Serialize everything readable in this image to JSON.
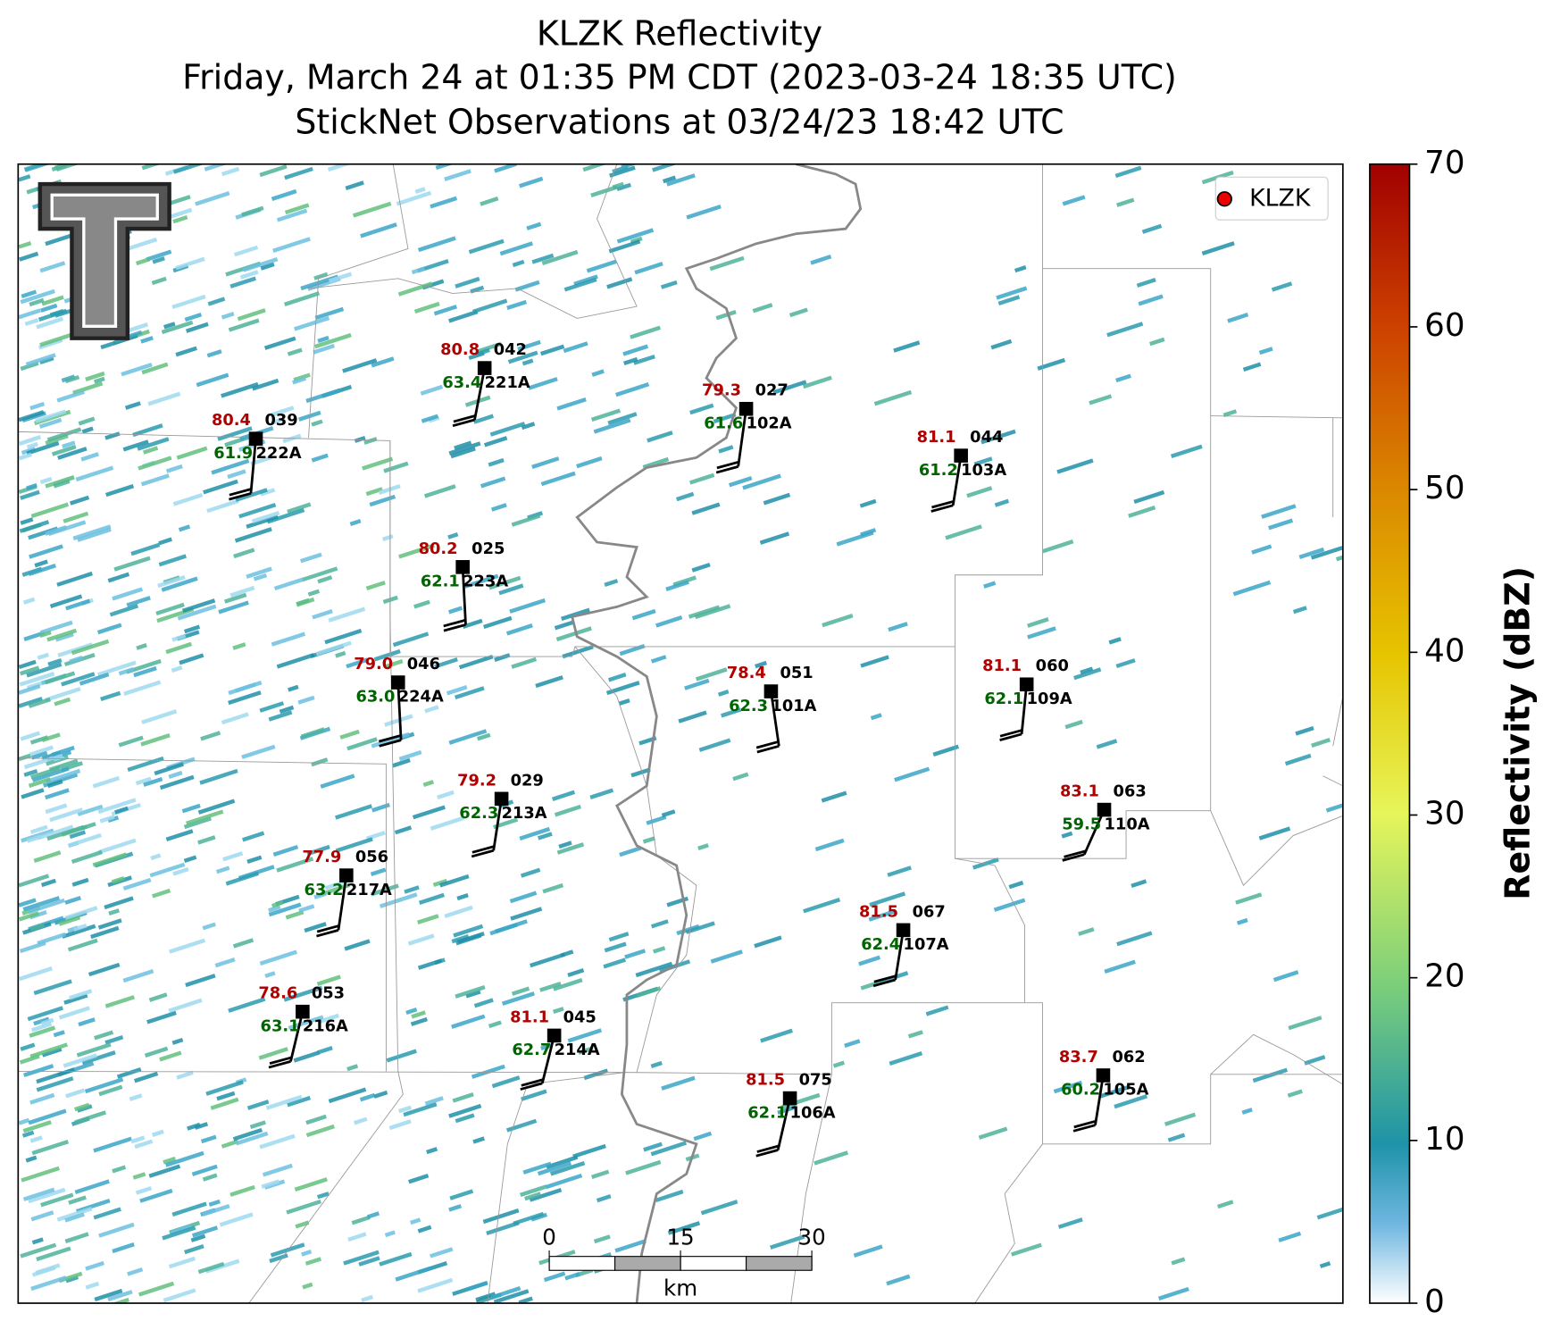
{
  "title": [
    "KLZK Reflectivity",
    "Friday, March 24 at 01:35 PM CDT (2023-03-24 18:35 UTC)",
    "StickNet Observations at 03/24/23 18:42 UTC"
  ],
  "legend": "KLZK",
  "colorbar": {
    "label": "Reflectivity (dBZ)",
    "range": [
      0,
      70
    ],
    "ticks": [
      0,
      10,
      20,
      30,
      40,
      50,
      60,
      70
    ]
  },
  "scale_bar": {
    "ticks": [
      0,
      15,
      30
    ],
    "unit": "km"
  },
  "stations": [
    {
      "id": "042",
      "probe": "221A",
      "temperature": "80.8",
      "dewpoint": "63.4"
    },
    {
      "id": "039",
      "probe": "222A",
      "temperature": "80.4",
      "dewpoint": "61.9"
    },
    {
      "id": "027",
      "probe": "102A",
      "temperature": "79.3",
      "dewpoint": "61.6"
    },
    {
      "id": "044",
      "probe": "103A",
      "temperature": "81.1",
      "dewpoint": "61.2"
    },
    {
      "id": "025",
      "probe": "223A",
      "temperature": "80.2",
      "dewpoint": "62.1"
    },
    {
      "id": "046",
      "probe": "224A",
      "temperature": "79.0",
      "dewpoint": "63.0"
    },
    {
      "id": "051",
      "probe": "101A",
      "temperature": "78.4",
      "dewpoint": "62.3"
    },
    {
      "id": "060",
      "probe": "109A",
      "temperature": "81.1",
      "dewpoint": "62.1"
    },
    {
      "id": "029",
      "probe": "213A",
      "temperature": "79.2",
      "dewpoint": "62.3"
    },
    {
      "id": "063",
      "probe": "110A",
      "temperature": "83.1",
      "dewpoint": "59.5"
    },
    {
      "id": "056",
      "probe": "217A",
      "temperature": "77.9",
      "dewpoint": "63.2"
    },
    {
      "id": "067",
      "probe": "107A",
      "temperature": "81.5",
      "dewpoint": "62.4"
    },
    {
      "id": "053",
      "probe": "216A",
      "temperature": "78.6",
      "dewpoint": "63.1"
    },
    {
      "id": "045",
      "probe": "214A",
      "temperature": "81.1",
      "dewpoint": "62.7"
    },
    {
      "id": "062",
      "probe": "105A",
      "temperature": "83.7",
      "dewpoint": "60.2"
    },
    {
      "id": "075",
      "probe": "106A",
      "temperature": "81.5",
      "dewpoint": "62.1"
    }
  ]
}
